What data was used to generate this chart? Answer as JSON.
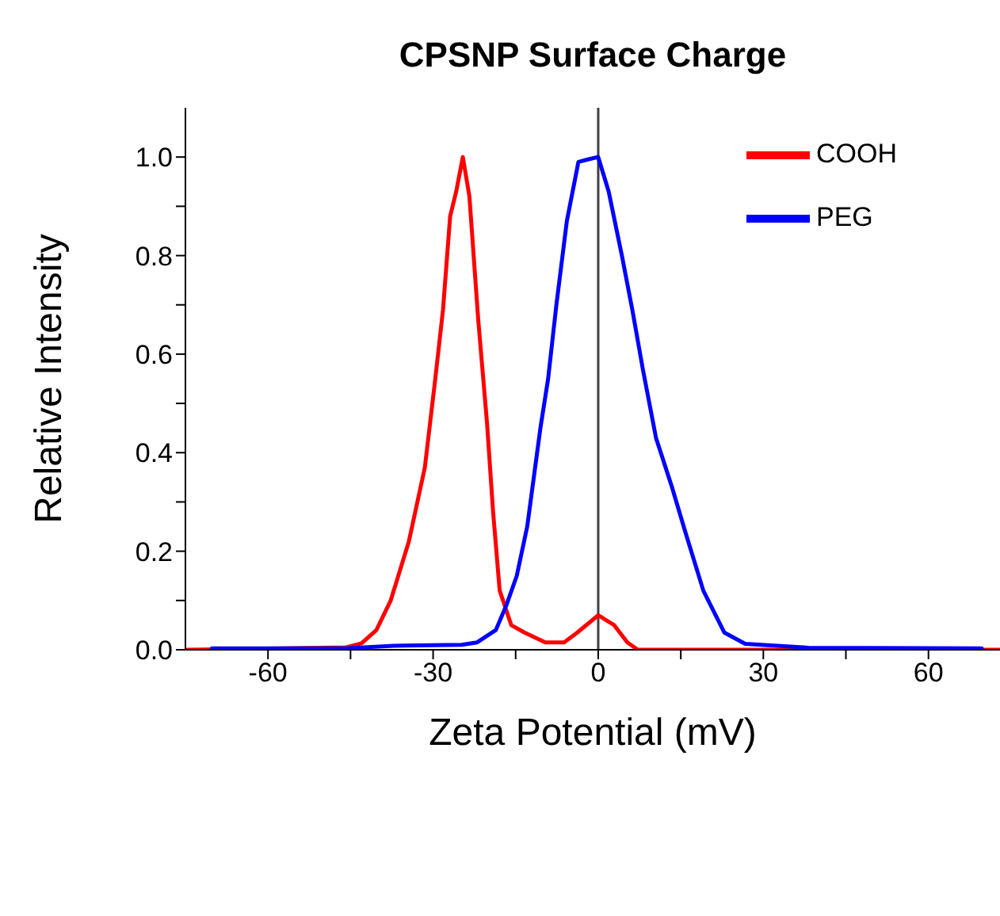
{
  "chart_data": {
    "type": "line",
    "title": "CPSNP Surface Charge",
    "xlabel": "Zeta Potential (mV)",
    "ylabel": "Relative Intensity",
    "xlim": [
      -75,
      73
    ],
    "ylim": [
      0,
      1.1
    ],
    "xticks": [
      -60,
      {
        "value": -45,
        "label": null
      },
      -30,
      {
        "value": -15,
        "label": null
      },
      0,
      {
        "value": 15,
        "label": null
      },
      30,
      {
        "value": 45,
        "label": null
      },
      60
    ],
    "yticks": [
      {
        "value": 0,
        "label": "0.0"
      },
      {
        "value": 0.1,
        "label": null
      },
      0.2,
      {
        "value": 0.3,
        "label": null
      },
      0.4,
      {
        "value": 0.5,
        "label": null
      },
      0.6,
      {
        "value": 0.7,
        "label": null
      },
      0.8,
      {
        "value": 0.9,
        "label": null
      },
      {
        "value": 1,
        "label": "1.0"
      }
    ],
    "ref_lines": [
      {
        "axis": "x",
        "value": 0,
        "label": null,
        "color": "#404040"
      }
    ],
    "legend": "top right",
    "grid": false,
    "marker": "none",
    "line_style": "solid",
    "series": [
      {
        "name": "COOH",
        "color": "#ff0000",
        "x": [
          -74.8,
          -45.8,
          -43,
          -40.3,
          -37.7,
          -34.4,
          -31.5,
          -29.6,
          -28.2,
          -26.9,
          -25.8,
          -24.6,
          -23.4,
          -21.8,
          -20.2,
          -19.1,
          -17.9,
          -15.8,
          -13.4,
          -9.6,
          -6.2,
          -3.8,
          0,
          2.9,
          5.3,
          7.2,
          72.9
        ],
        "values": [
          0,
          0.005,
          0.013,
          0.04,
          0.1,
          0.22,
          0.37,
          0.55,
          0.69,
          0.88,
          0.93,
          1.0,
          0.92,
          0.67,
          0.46,
          0.28,
          0.12,
          0.05,
          0.035,
          0.015,
          0.015,
          0.035,
          0.07,
          0.05,
          0.015,
          0,
          0
        ]
      },
      {
        "name": "PEG",
        "color": "#0000ff",
        "x": [
          -70.2,
          -45.8,
          -37.2,
          -24.8,
          -22,
          -18.6,
          -16.7,
          -14.8,
          -12.9,
          -10.5,
          -9.1,
          -7.6,
          -5.7,
          -3.6,
          -1.9,
          0,
          1.9,
          4.3,
          6.2,
          8.1,
          10.5,
          13.4,
          15.8,
          19.1,
          22.9,
          26.7,
          38.2,
          69.7
        ],
        "values": [
          0.003,
          0.003,
          0.008,
          0.01,
          0.015,
          0.04,
          0.09,
          0.15,
          0.25,
          0.45,
          0.55,
          0.7,
          0.87,
          0.99,
          0.995,
          1.0,
          0.93,
          0.8,
          0.69,
          0.57,
          0.43,
          0.33,
          0.24,
          0.12,
          0.035,
          0.012,
          0.004,
          0.003
        ]
      }
    ]
  }
}
